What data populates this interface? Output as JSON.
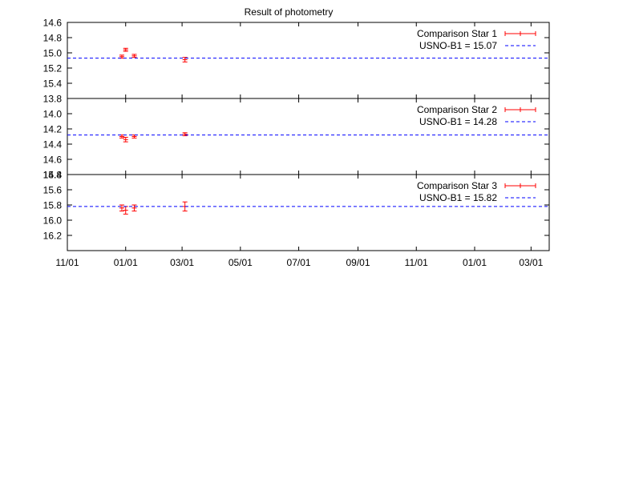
{
  "chart_data": {
    "type": "scatter",
    "title": "Result of photometry",
    "xlabel": "",
    "x_ticks": [
      "11/01",
      "01/01",
      "03/01",
      "05/01",
      "07/01",
      "09/01",
      "11/01",
      "01/01",
      "03/01"
    ],
    "x_tick_dates": [
      "2009-11-01",
      "2010-01-01",
      "2010-03-01",
      "2010-05-01",
      "2010-07-01",
      "2010-09-01",
      "2010-11-01",
      "2011-01-01",
      "2011-03-01"
    ],
    "xlim": [
      "2009-11-01",
      "2011-03-20"
    ],
    "legend_position": "top-right",
    "panels": [
      {
        "ylim": [
          14.6,
          15.6
        ],
        "y_reversed": true,
        "y_ticks": [
          "14.6",
          "14.8",
          "15.0",
          "15.2",
          "15.4"
        ],
        "series": [
          {
            "name": "Comparison Star 1",
            "style": "points with error bars",
            "color": "#ff0000",
            "points": [
              {
                "x": "2009-12-28",
                "y": 15.05,
                "err": 0.02
              },
              {
                "x": "2010-01-01",
                "y": 14.96,
                "err": 0.02
              },
              {
                "x": "2010-01-10",
                "y": 15.04,
                "err": 0.02
              },
              {
                "x": "2010-03-04",
                "y": 15.09,
                "err": 0.03
              }
            ]
          },
          {
            "name": "USNO-B1 = 15.07",
            "style": "dashed line",
            "color": "#0000ff",
            "y": 15.07
          }
        ]
      },
      {
        "ylim": [
          13.8,
          14.8
        ],
        "y_reversed": true,
        "y_ticks": [
          "13.8",
          "14.0",
          "14.2",
          "14.4",
          "14.6",
          "14.8"
        ],
        "series": [
          {
            "name": "Comparison Star 2",
            "style": "points with error bars",
            "color": "#ff0000",
            "points": [
              {
                "x": "2009-12-28",
                "y": 14.3,
                "err": 0.02
              },
              {
                "x": "2010-01-01",
                "y": 14.34,
                "err": 0.03
              },
              {
                "x": "2010-01-10",
                "y": 14.3,
                "err": 0.02
              },
              {
                "x": "2010-03-04",
                "y": 14.27,
                "err": 0.02
              }
            ]
          },
          {
            "name": "USNO-B1 = 14.28",
            "style": "dashed line",
            "color": "#0000ff",
            "y": 14.28
          }
        ]
      },
      {
        "ylim": [
          15.4,
          16.4
        ],
        "y_reversed": true,
        "y_ticks": [
          "15.4",
          "15.6",
          "15.8",
          "16.0",
          "16.2"
        ],
        "series": [
          {
            "name": "Comparison Star 3",
            "style": "points with error bars",
            "color": "#ff0000",
            "points": [
              {
                "x": "2009-12-28",
                "y": 15.84,
                "err": 0.04
              },
              {
                "x": "2010-01-01",
                "y": 15.87,
                "err": 0.05
              },
              {
                "x": "2010-01-10",
                "y": 15.84,
                "err": 0.04
              },
              {
                "x": "2010-03-04",
                "y": 15.82,
                "err": 0.06
              }
            ]
          },
          {
            "name": "USNO-B1 = 15.82",
            "style": "dashed line",
            "color": "#0000ff",
            "y": 15.82
          }
        ]
      }
    ]
  }
}
